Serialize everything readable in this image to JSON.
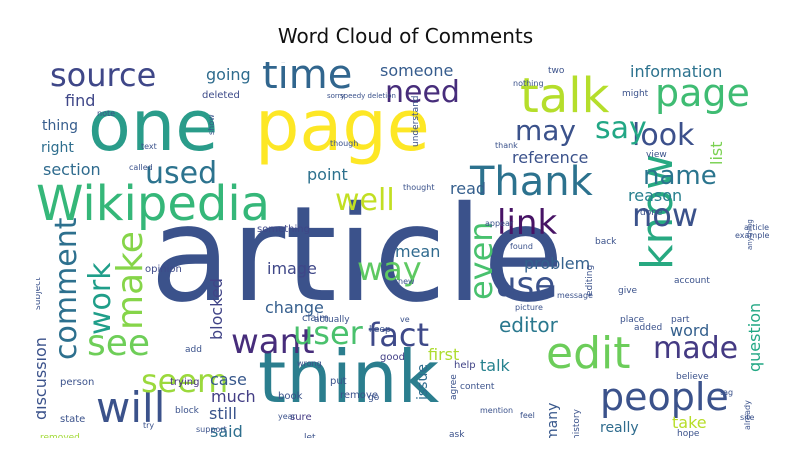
{
  "chart_data": {
    "type": "word_cloud",
    "title": "Word Cloud of Comments",
    "words": [
      {
        "text": "article",
        "color": "#3b528b"
      },
      {
        "text": "one",
        "color": "#2a9c8a"
      },
      {
        "text": "page",
        "color": "#fde725"
      },
      {
        "text": "think",
        "color": "#2b7e8e"
      },
      {
        "text": "Wikipedia",
        "color": "#35b779"
      },
      {
        "text": "talk",
        "color": "#b5de2b"
      },
      {
        "text": "page",
        "color": "#3fbc73"
      },
      {
        "text": "edit",
        "color": "#6ccd5a"
      },
      {
        "text": "know",
        "color": "#27a981"
      },
      {
        "text": "will",
        "color": "#3b528b"
      },
      {
        "text": "people",
        "color": "#3b528b"
      },
      {
        "text": "Thank",
        "color": "#2c728e"
      },
      {
        "text": "source",
        "color": "#3f4788"
      },
      {
        "text": "time",
        "color": "#31668e"
      },
      {
        "text": "need",
        "color": "#472d7b"
      },
      {
        "text": "look",
        "color": "#3c508b"
      },
      {
        "text": "say",
        "color": "#22a785"
      },
      {
        "text": "may",
        "color": "#3b528b"
      },
      {
        "text": "link",
        "color": "#471365"
      },
      {
        "text": "now",
        "color": "#3b528b"
      },
      {
        "text": "name",
        "color": "#2b758e"
      },
      {
        "text": "used",
        "color": "#2c738e"
      },
      {
        "text": "well",
        "color": "#c2df23"
      },
      {
        "text": "way",
        "color": "#5ec962"
      },
      {
        "text": "use",
        "color": "#3b528b"
      },
      {
        "text": "even",
        "color": "#48c16e"
      },
      {
        "text": "make",
        "color": "#86d549"
      },
      {
        "text": "work",
        "color": "#1f9e89"
      },
      {
        "text": "comment",
        "color": "#2d708e"
      },
      {
        "text": "see",
        "color": "#6ece58"
      },
      {
        "text": "want",
        "color": "#472d7b"
      },
      {
        "text": "user",
        "color": "#4ac16d"
      },
      {
        "text": "fact",
        "color": "#3e4989"
      },
      {
        "text": "seem",
        "color": "#9bd93c"
      },
      {
        "text": "made",
        "color": "#443a83"
      },
      {
        "text": "editor",
        "color": "#2a788e"
      },
      {
        "text": "information",
        "color": "#2c728e"
      },
      {
        "text": "going",
        "color": "#2f6c8e"
      },
      {
        "text": "someone",
        "color": "#365c8d"
      },
      {
        "text": "find",
        "color": "#3f4788"
      },
      {
        "text": "thing",
        "color": "#365d8d"
      },
      {
        "text": "right",
        "color": "#2e6e8e"
      },
      {
        "text": "section",
        "color": "#2f6b8e"
      },
      {
        "text": "reference",
        "color": "#3b528b"
      },
      {
        "text": "point",
        "color": "#2d718e"
      },
      {
        "text": "read",
        "color": "#355f8d"
      },
      {
        "text": "reason",
        "color": "#277f8e"
      },
      {
        "text": "list",
        "color": "#7ad151"
      },
      {
        "text": "image",
        "color": "#3f4788"
      },
      {
        "text": "blocked",
        "color": "#414487"
      },
      {
        "text": "mean",
        "color": "#306a8e"
      },
      {
        "text": "problem",
        "color": "#34618d"
      },
      {
        "text": "change",
        "color": "#355e8d"
      },
      {
        "text": "question",
        "color": "#22a884"
      },
      {
        "text": "word",
        "color": "#35608d"
      },
      {
        "text": "discussion",
        "color": "#3b528b"
      },
      {
        "text": "case",
        "color": "#38588c"
      },
      {
        "text": "much",
        "color": "#433e85"
      },
      {
        "text": "still",
        "color": "#3a548c"
      },
      {
        "text": "said",
        "color": "#2e6f8e"
      },
      {
        "text": "first",
        "color": "#addc30"
      },
      {
        "text": "talk",
        "color": "#26828e"
      },
      {
        "text": "issue",
        "color": "#2f6c8e"
      },
      {
        "text": "many",
        "color": "#38588c"
      },
      {
        "text": "really",
        "color": "#2f6c8e"
      },
      {
        "text": "take",
        "color": "#b8de29"
      },
      {
        "text": "opinion",
        "color": "#3e4a89"
      },
      {
        "text": "deleted",
        "color": "#3e4c8a"
      },
      {
        "text": "help",
        "color": "#414487"
      },
      {
        "text": "good",
        "color": "#424086"
      },
      {
        "text": "claim",
        "color": "#3a548c"
      },
      {
        "text": "something",
        "color": "#3f4788"
      },
      {
        "text": "put",
        "color": "#3b528b"
      },
      {
        "text": "remove",
        "color": "#3b528b"
      },
      {
        "text": "trying",
        "color": "#46327e"
      },
      {
        "text": "person",
        "color": "#3b528b"
      },
      {
        "text": "book",
        "color": "#3b528b"
      },
      {
        "text": "sure",
        "color": "#443a83"
      },
      {
        "text": "state",
        "color": "#3b528b"
      },
      {
        "text": "removed",
        "color": "#a2da37"
      },
      {
        "text": "subject",
        "color": "#3b528b"
      },
      {
        "text": "back",
        "color": "#3b528b"
      },
      {
        "text": "give",
        "color": "#3b528b"
      },
      {
        "text": "part",
        "color": "#3b528b"
      },
      {
        "text": "added",
        "color": "#3b528b"
      },
      {
        "text": "place",
        "color": "#3b528b"
      },
      {
        "text": "believe",
        "color": "#3b528b"
      },
      {
        "text": "done",
        "color": "#3b528b"
      },
      {
        "text": "view",
        "color": "#3b528b"
      },
      {
        "text": "might",
        "color": "#3b528b"
      },
      {
        "text": "two",
        "color": "#3b528b"
      },
      {
        "text": "hope",
        "color": "#3b528b"
      },
      {
        "text": "ask",
        "color": "#3b528b"
      },
      {
        "text": "let",
        "color": "#3b528b"
      },
      {
        "text": "go",
        "color": "#3b528b"
      },
      {
        "text": "block",
        "color": "#3b528b"
      },
      {
        "text": "add",
        "color": "#3b528b"
      },
      {
        "text": "history",
        "color": "#3b528b"
      },
      {
        "text": "agree",
        "color": "#3b528b"
      },
      {
        "text": "keep",
        "color": "#3b528b"
      },
      {
        "text": "actually",
        "color": "#3b528b"
      },
      {
        "text": "understand",
        "color": "#3b528b"
      },
      {
        "text": "content",
        "color": "#3b528b"
      },
      {
        "text": "editing",
        "color": "#3b528b"
      },
      {
        "text": "account",
        "color": "#3b528b"
      },
      {
        "text": "article",
        "color": "#3b528b"
      },
      {
        "text": "sorry",
        "color": "#3b528b"
      },
      {
        "text": "speedy deletion",
        "color": "#3b528b"
      },
      {
        "text": "though",
        "color": "#3b528b"
      },
      {
        "text": "year",
        "color": "#3b528b"
      },
      {
        "text": "show",
        "color": "#3b528b"
      },
      {
        "text": "thank",
        "color": "#3b528b"
      },
      {
        "text": "note",
        "color": "#3b528b"
      },
      {
        "text": "found",
        "color": "#3b528b"
      },
      {
        "text": "example",
        "color": "#3b528b"
      },
      {
        "text": "anything",
        "color": "#3b528b"
      },
      {
        "text": "nothing",
        "color": "#3b528b"
      },
      {
        "text": "called",
        "color": "#3b528b"
      },
      {
        "text": "text",
        "color": "#3b528b"
      },
      {
        "text": "appear",
        "color": "#3b528b"
      },
      {
        "text": "thought",
        "color": "#3b528b"
      },
      {
        "text": "wrong",
        "color": "#3b528b"
      },
      {
        "text": "support",
        "color": "#3b528b"
      },
      {
        "text": "picture",
        "color": "#3b528b"
      },
      {
        "text": "message",
        "color": "#3b528b"
      },
      {
        "text": "new",
        "color": "#3b528b"
      },
      {
        "text": "ve",
        "color": "#3b528b"
      },
      {
        "text": "try",
        "color": "#3b528b"
      },
      {
        "text": "mention",
        "color": "#3b528b"
      },
      {
        "text": "feel",
        "color": "#3b528b"
      },
      {
        "text": "already",
        "color": "#3b528b"
      },
      {
        "text": "site",
        "color": "#3b528b"
      },
      {
        "text": "tag",
        "color": "#3b528b"
      }
    ]
  }
}
